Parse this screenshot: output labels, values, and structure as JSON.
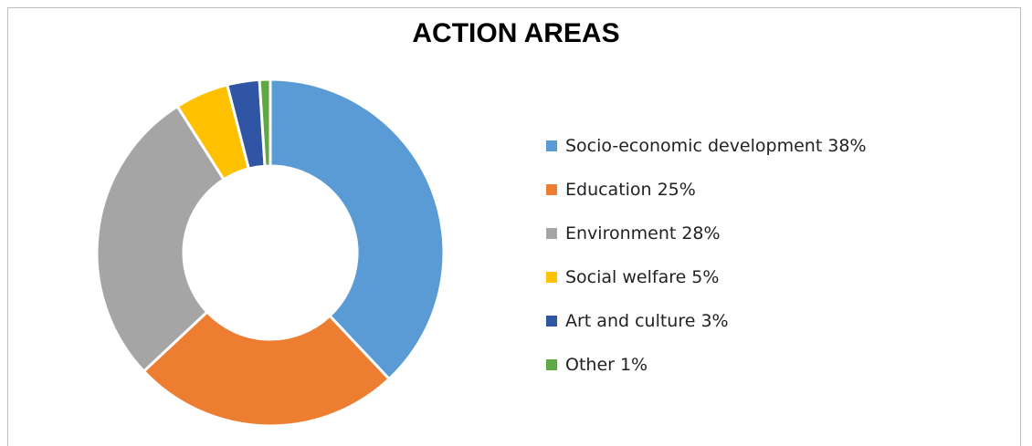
{
  "chart_data": {
    "type": "donut",
    "title": "ACTION AREAS",
    "categories": [
      "Socio-economic development",
      "Education",
      "Environment",
      "Social welfare",
      "Art and culture",
      "Other"
    ],
    "values": [
      38,
      25,
      28,
      5,
      3,
      1
    ],
    "value_labels": [
      "38%",
      "25%",
      "28%",
      "5%",
      "3%",
      "1%"
    ],
    "colors": [
      "#5b9bd5",
      "#ed7d31",
      "#a5a5a5",
      "#ffc000",
      "#2f55a4",
      "#5fa843"
    ],
    "legend": "right"
  }
}
